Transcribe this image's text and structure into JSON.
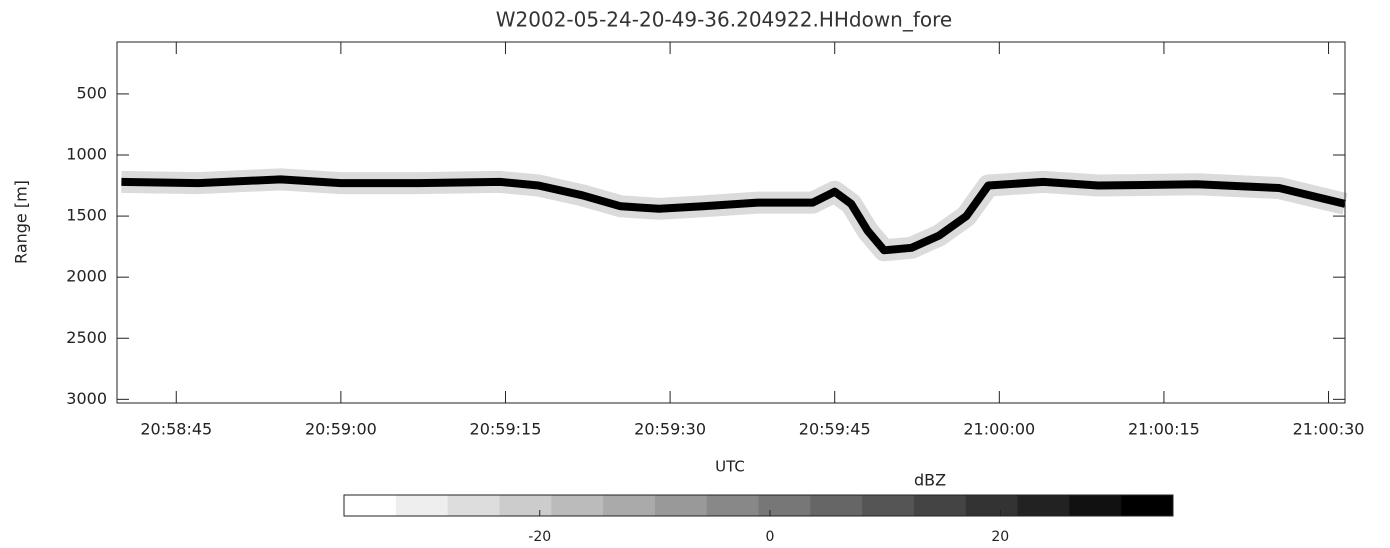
{
  "chart_data": {
    "type": "line",
    "title": "W2002-05-24-20-49-36.204922.HHdown_fore",
    "x_label": "UTC",
    "y_label": "Range [m]",
    "x": [
      75520,
      75527,
      75534.5,
      75540,
      75547,
      75554.5,
      75558,
      75562,
      75565.5,
      75569,
      75573,
      75578,
      75583,
      75585,
      75586.5,
      75588,
      75589.5,
      75592,
      75594.5,
      75597,
      75599,
      75604,
      75609,
      75618,
      75625.5,
      75631.5
    ],
    "values": [
      1220,
      1230,
      1200,
      1230,
      1230,
      1220,
      1250,
      1330,
      1420,
      1440,
      1420,
      1390,
      1390,
      1300,
      1400,
      1620,
      1780,
      1760,
      1660,
      1500,
      1250,
      1220,
      1250,
      1240,
      1270,
      1400
    ],
    "color": "#000000",
    "xlim": [
      75519.6,
      75631.5
    ],
    "xticks": [
      {
        "value": 75525,
        "label": "20:58:45"
      },
      {
        "value": 75540,
        "label": "20:59:00"
      },
      {
        "value": 75555,
        "label": "20:59:15"
      },
      {
        "value": 75570,
        "label": "20:59:30"
      },
      {
        "value": 75585,
        "label": "20:59:45"
      },
      {
        "value": 75600,
        "label": "21:00:00"
      },
      {
        "value": 75615,
        "label": "21:00:15"
      },
      {
        "value": 75630,
        "label": "21:00:30"
      }
    ],
    "ylim": [
      75,
      3030
    ],
    "y_inverted": true,
    "yticks": [
      500,
      1000,
      1500,
      2000,
      2500,
      3000
    ],
    "colorbar": {
      "label": "dBZ",
      "lim": [
        -37,
        35
      ],
      "ticks": [
        -20,
        0,
        20
      ],
      "colors": [
        "#ffffff",
        "#eeeeee",
        "#dddddd",
        "#cccccc",
        "#bbbbbb",
        "#aaaaaa",
        "#999999",
        "#888888",
        "#777777",
        "#666666",
        "#555555",
        "#444444",
        "#333333",
        "#222222",
        "#111111",
        "#000000"
      ]
    }
  }
}
